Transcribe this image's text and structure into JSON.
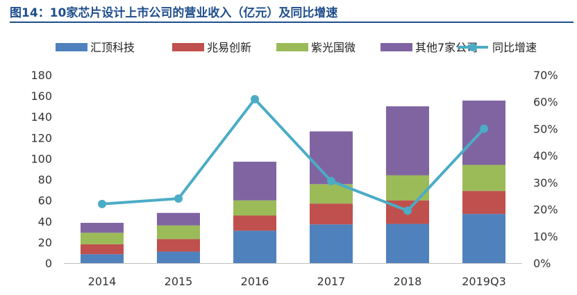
{
  "title": "图14：10家芯片设计上市公司的营业收入（亿元）及同比增速",
  "chart_data": {
    "type": "bar",
    "stacked": true,
    "categories": [
      "2014",
      "2015",
      "2016",
      "2017",
      "2018",
      "2019Q3"
    ],
    "series": [
      {
        "name": "汇顶科技",
        "color": "#4f81bd",
        "values": [
          8.5,
          11,
          31,
          37,
          37.5,
          47
        ]
      },
      {
        "name": "兆易创新",
        "color": "#c0504d",
        "values": [
          9.5,
          12,
          14.5,
          20,
          22.5,
          22
        ]
      },
      {
        "name": "紫光国微",
        "color": "#9bbb59",
        "values": [
          11,
          13,
          14.5,
          18.5,
          24,
          25
        ]
      },
      {
        "name": "其他7家公司",
        "color": "#8064a2",
        "values": [
          9.5,
          12,
          37,
          50.5,
          66,
          61.5
        ]
      }
    ],
    "line": {
      "name": "同比增速",
      "color": "#4bacc6",
      "axis": "right",
      "values": [
        22,
        24,
        61,
        30.5,
        19.5,
        50
      ]
    },
    "ylim": [
      0,
      180
    ],
    "y2lim": [
      0,
      70
    ],
    "yticks": [
      "0",
      "20",
      "40",
      "60",
      "80",
      "100",
      "120",
      "140",
      "160",
      "180"
    ],
    "y2ticks": [
      "0%",
      "10%",
      "20%",
      "30%",
      "40%",
      "50%",
      "60%",
      "70%"
    ],
    "legend": "top"
  }
}
